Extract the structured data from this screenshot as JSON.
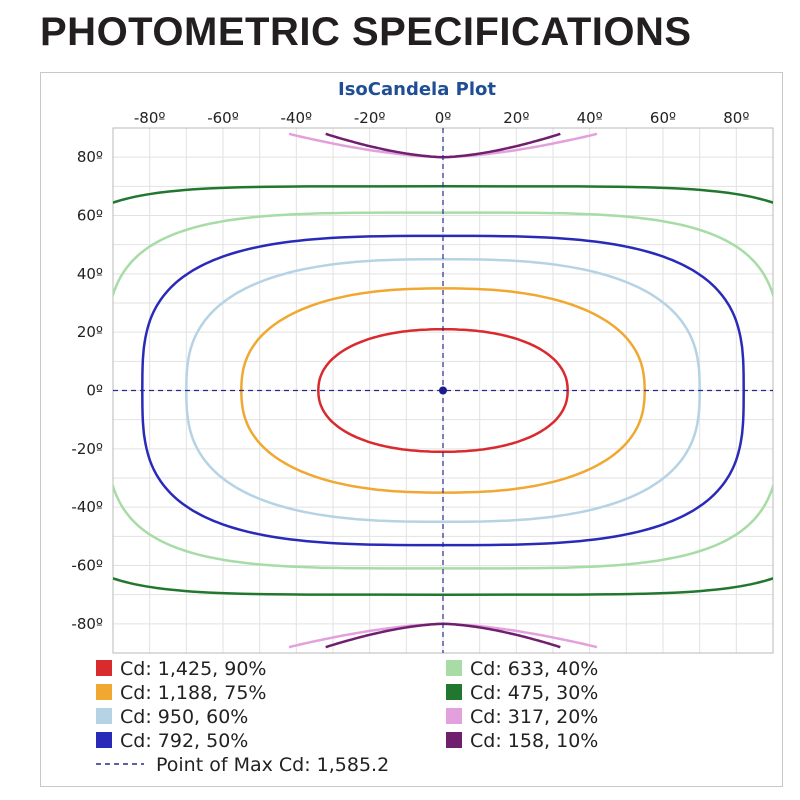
{
  "page": {
    "heading": "PHOTOMETRIC SPECIFICATIONS"
  },
  "chart_data": {
    "type": "line",
    "title": "IsoCandela Plot",
    "xlim": [
      -90,
      90
    ],
    "ylim": [
      -90,
      90
    ],
    "x_ticks": [
      -80,
      -60,
      -40,
      -20,
      0,
      20,
      40,
      60,
      80
    ],
    "y_ticks": [
      80,
      60,
      40,
      20,
      0,
      -20,
      -40,
      -60,
      -80
    ],
    "x_tick_labels": [
      "-80º",
      "-60º",
      "-40º",
      "-20º",
      "0º",
      "20º",
      "40º",
      "60º",
      "80º"
    ],
    "y_tick_labels": [
      "80º",
      "60º",
      "40º",
      "20º",
      "0º",
      "-20º",
      "-40º",
      "-60º",
      "-80º"
    ],
    "grid": true,
    "legend_position": "bottom",
    "series": [
      {
        "name": "Cd: 1,425, 90%",
        "candela": 1425,
        "percent": 90,
        "color": "#d92a2e",
        "shape": "closed",
        "x_extent": 34,
        "y_extent": 21,
        "power": 2.2
      },
      {
        "name": "Cd: 1,188, 75%",
        "candela": 1188,
        "percent": 75,
        "color": "#f0a830",
        "shape": "closed",
        "x_extent": 55,
        "y_extent": 35,
        "power": 2.4
      },
      {
        "name": "Cd: 950, 60%",
        "candela": 950,
        "percent": 60,
        "color": "#b5d3e4",
        "shape": "closed",
        "x_extent": 70,
        "y_extent": 45,
        "power": 2.7
      },
      {
        "name": "Cd: 792, 50%",
        "candela": 792,
        "percent": 50,
        "color": "#2a2ab8",
        "shape": "closed",
        "x_extent": 82,
        "y_extent": 53,
        "power": 3.2
      },
      {
        "name": "Cd: 633, 40%",
        "candela": 633,
        "percent": 40,
        "color": "#a8dca6",
        "shape": "closed",
        "x_extent": 92,
        "y_extent": 61,
        "power": 4.0
      },
      {
        "name": "Cd: 475, 30%",
        "candela": 475,
        "percent": 30,
        "color": "#22772f",
        "shape": "closed",
        "x_extent": 108,
        "y_extent": 70,
        "power": 5.5
      },
      {
        "name": "Cd: 317, 20%",
        "candela": 317,
        "percent": 20,
        "color": "#e2a0dc",
        "shape": "arc",
        "x_extent": 42,
        "y_min": 80,
        "y_max": 88
      },
      {
        "name": "Cd: 158, 10%",
        "candela": 158,
        "percent": 10,
        "color": "#6e1f6e",
        "shape": "arc",
        "x_extent": 32,
        "y_min": 80,
        "y_max": 88
      }
    ],
    "max_point": {
      "label": "Point of Max Cd: 1,585.2",
      "value": 1585.2,
      "x": 0,
      "y": 0
    }
  }
}
